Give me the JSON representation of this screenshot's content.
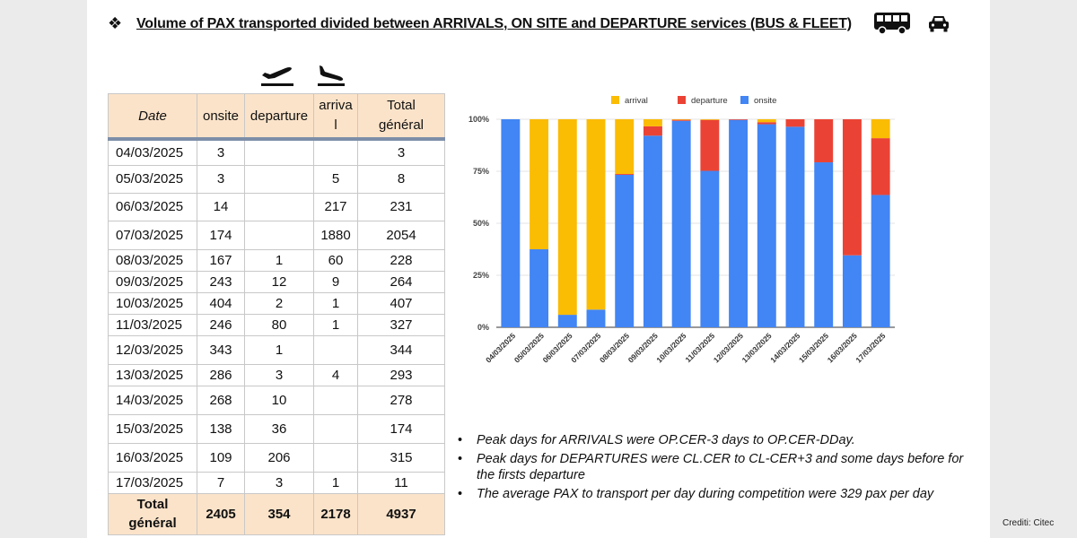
{
  "header": {
    "bullet": "❖",
    "title": "Volume of PAX transported divided between ARRIVALS, ON SITE and DEPARTURE services (BUS & FLEET)",
    "icons": [
      "bus-icon",
      "car-icon",
      "plane-departure-icon",
      "plane-arrival-icon"
    ]
  },
  "table": {
    "headers": {
      "date": "Date",
      "onsite": "onsite",
      "departure": "departure",
      "arrival": "arriva\nl",
      "total": "Total\ngénéral"
    },
    "rows": [
      {
        "date": "04/03/2025",
        "onsite": "3",
        "departure": "",
        "arrival": "",
        "total": "3"
      },
      {
        "date": "05/03/2025",
        "onsite": "3",
        "departure": "",
        "arrival": "5",
        "total": "8"
      },
      {
        "date": "06/03/2025",
        "onsite": "14",
        "departure": "",
        "arrival": "217",
        "total": "231"
      },
      {
        "date": "07/03/2025",
        "onsite": "174",
        "departure": "",
        "arrival": "1880",
        "total": "2054"
      },
      {
        "date": "08/03/2025",
        "onsite": "167",
        "departure": "1",
        "arrival": "60",
        "total": "228"
      },
      {
        "date": "09/03/2025",
        "onsite": "243",
        "departure": "12",
        "arrival": "9",
        "total": "264"
      },
      {
        "date": "10/03/2025",
        "onsite": "404",
        "departure": "2",
        "arrival": "1",
        "total": "407"
      },
      {
        "date": "11/03/2025",
        "onsite": "246",
        "departure": "80",
        "arrival": "1",
        "total": "327"
      },
      {
        "date": "12/03/2025",
        "onsite": "343",
        "departure": "1",
        "arrival": "",
        "total": "344"
      },
      {
        "date": "13/03/2025",
        "onsite": "286",
        "departure": "3",
        "arrival": "4",
        "total": "293"
      },
      {
        "date": "14/03/2025",
        "onsite": "268",
        "departure": "10",
        "arrival": "",
        "total": "278"
      },
      {
        "date": "15/03/2025",
        "onsite": "138",
        "departure": "36",
        "arrival": "",
        "total": "174"
      },
      {
        "date": "16/03/2025",
        "onsite": "109",
        "departure": "206",
        "arrival": "",
        "total": "315"
      },
      {
        "date": "17/03/2025",
        "onsite": "7",
        "departure": "3",
        "arrival": "1",
        "total": "11"
      }
    ],
    "footer": {
      "label": "Total\ngénéral",
      "onsite": "2405",
      "departure": "354",
      "arrival": "2178",
      "total": "4937"
    }
  },
  "chart_data": {
    "type": "bar",
    "stacked": "percent",
    "categories": [
      "04/03/2025",
      "05/03/2025",
      "06/03/2025",
      "07/03/2025",
      "08/03/2025",
      "09/03/2025",
      "10/03/2025",
      "11/03/2025",
      "12/03/2025",
      "13/03/2025",
      "14/03/2025",
      "15/03/2025",
      "16/03/2025",
      "17/03/2025"
    ],
    "series": [
      {
        "name": "arrival",
        "color": "#fbbc04",
        "values": [
          0,
          62.5,
          94,
          91.5,
          26.3,
          3.4,
          0.25,
          0.3,
          0,
          1.4,
          0,
          0,
          0,
          9.1
        ]
      },
      {
        "name": "departure",
        "color": "#ea4335",
        "values": [
          0,
          0,
          0,
          0,
          0.4,
          4.5,
          0.5,
          24.5,
          0.3,
          1.0,
          3.6,
          20.7,
          65.4,
          27.3
        ]
      },
      {
        "name": "onsite",
        "color": "#4285f4",
        "values": [
          100,
          37.5,
          6,
          8.5,
          73.3,
          92.1,
          99.25,
          75.2,
          99.7,
          97.6,
          96.4,
          79.3,
          34.6,
          63.6
        ]
      }
    ],
    "yticks": [
      "0%",
      "25%",
      "50%",
      "75%",
      "100%"
    ],
    "ylim": [
      0,
      100
    ],
    "stack_order": [
      "onsite",
      "departure",
      "arrival"
    ],
    "legend_order": [
      "arrival",
      "departure",
      "onsite"
    ],
    "legend_position": "top-center"
  },
  "notes": [
    "Peak days for ARRIVALS were OP.CER-3 days to OP.CER-DDay.",
    "Peak days for DEPARTURES were CL.CER to CL-CER+3 and some days before for the firsts departure",
    "The average PAX to transport per day during competition were 329  pax per day"
  ],
  "credit": "Crediti: Citec"
}
